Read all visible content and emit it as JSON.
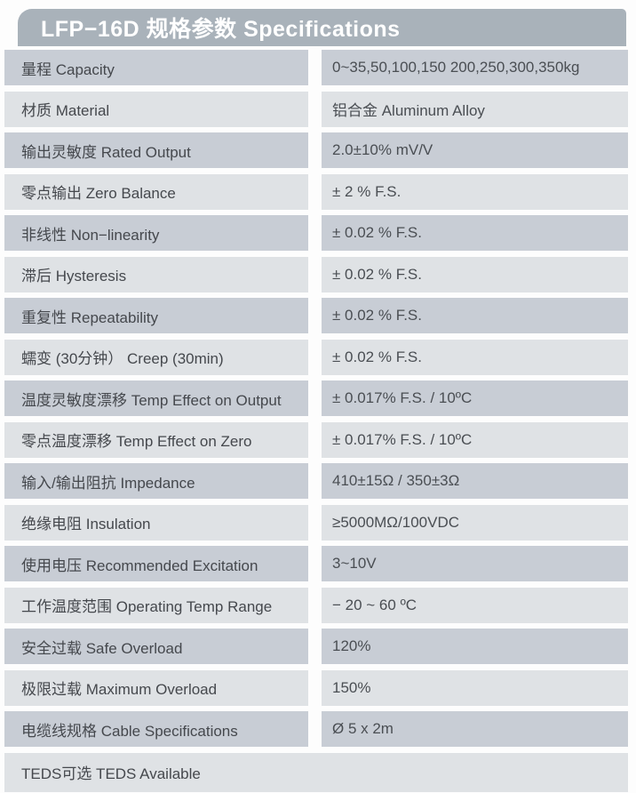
{
  "header": {
    "title": "LFP−16D 规格参数 Specifications"
  },
  "colors": {
    "header_bg": "#a9b2ba",
    "header_text": "#ffffff",
    "row_dark": "#c8cdd5",
    "row_light": "#dfe2e5",
    "label_text": "#45484d"
  },
  "table": {
    "rows": [
      {
        "label": "量程 Capacity",
        "value": "0~35,50,100,150 200,250,300,350kg"
      },
      {
        "label": "材质 Material",
        "value": "铝合金 Aluminum Alloy"
      },
      {
        "label": "输出灵敏度 Rated Output",
        "value": "2.0±10% mV/V"
      },
      {
        "label": "零点输出 Zero Balance",
        "value": "± 2 % F.S."
      },
      {
        "label": "非线性 Non−linearity",
        "value": "± 0.02 % F.S."
      },
      {
        "label": "滞后 Hysteresis",
        "value": "± 0.02 % F.S."
      },
      {
        "label": "重复性 Repeatability",
        "value": "± 0.02 % F.S."
      },
      {
        "label": "蠕变 (30分钟） Creep (30min)",
        "value": "± 0.02 % F.S."
      },
      {
        "label": "温度灵敏度漂移 Temp Effect on Output",
        "value": "± 0.017% F.S. / 10ºC"
      },
      {
        "label": "零点温度漂移 Temp Effect on Zero",
        "value": "± 0.017% F.S. / 10ºC"
      },
      {
        "label": "输入/输出阻抗 Impedance",
        "value": "410±15Ω / 350±3Ω"
      },
      {
        "label": "绝缘电阻 Insulation",
        "value": "≥5000MΩ/100VDC"
      },
      {
        "label": "使用电压 Recommended Excitation",
        "value": "3~10V"
      },
      {
        "label": "工作温度范围 Operating Temp Range",
        "value": "− 20 ~ 60 ºC"
      },
      {
        "label": "安全过载 Safe Overload",
        "value": "120%"
      },
      {
        "label": "极限过载 Maximum Overload",
        "value": "150%"
      },
      {
        "label": "电缆线规格 Cable Specifications",
        "value": "Ø 5 x 2m"
      },
      {
        "label": "TEDS可选 TEDS Available",
        "value": ""
      }
    ]
  }
}
